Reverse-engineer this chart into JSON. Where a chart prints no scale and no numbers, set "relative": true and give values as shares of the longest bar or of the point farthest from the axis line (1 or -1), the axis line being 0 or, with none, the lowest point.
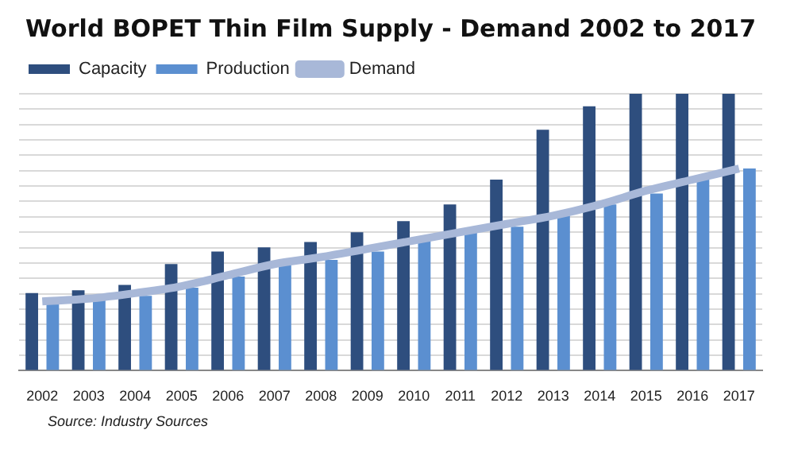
{
  "chart_data": {
    "type": "bar",
    "title": "World BOPET Thin Film Supply - Demand 2002 to 2017",
    "categories": [
      "2002",
      "2003",
      "2004",
      "2005",
      "2006",
      "2007",
      "2008",
      "2009",
      "2010",
      "2011",
      "2012",
      "2013",
      "2014",
      "2015",
      "2016",
      "2017"
    ],
    "series": [
      {
        "name": "Capacity",
        "color": "#2e4e7e",
        "values": [
          0.28,
          0.29,
          0.31,
          0.385,
          0.43,
          0.445,
          0.465,
          0.5,
          0.54,
          0.6,
          0.69,
          0.87,
          0.955,
          1,
          1,
          1
        ]
      },
      {
        "name": "Production",
        "color": "#5b8fd0",
        "values": [
          0.25,
          0.26,
          0.27,
          0.3,
          0.34,
          0.38,
          0.4,
          0.43,
          0.47,
          0.5,
          0.52,
          0.56,
          0.6,
          0.64,
          0.69,
          0.73
        ]
      },
      {
        "name": "Demand",
        "type": "line",
        "color": "#a8b8d8",
        "values": [
          0.25,
          0.26,
          0.28,
          0.305,
          0.345,
          0.385,
          0.41,
          0.44,
          0.47,
          0.5,
          0.53,
          0.56,
          0.6,
          0.65,
          0.69,
          0.73
        ]
      }
    ],
    "relative": true,
    "grid": "y",
    "legend": "top left",
    "marker": "none",
    "annotations": [
      "Source: Industry Sources"
    ]
  }
}
